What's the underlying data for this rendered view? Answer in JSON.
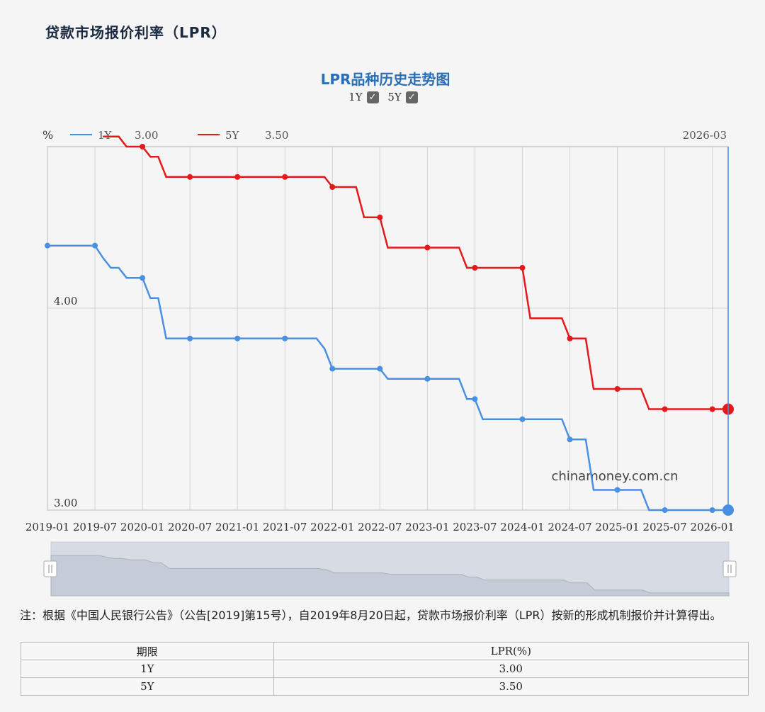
{
  "page_title": "贷款市场报价利率（LPR）",
  "chart_title": "LPR品种历史走势图",
  "toggles": [
    {
      "label": "1Y",
      "checked": true
    },
    {
      "label": "5Y",
      "checked": true
    }
  ],
  "legend": {
    "unit": "%",
    "items": [
      {
        "name": "1Y",
        "value": "3.00",
        "color": "#4a90e2"
      },
      {
        "name": "5Y",
        "value": "3.50",
        "color": "#e41a1a"
      }
    ],
    "cursor_date": "2026-03"
  },
  "watermark": "chinamoney.com.cn",
  "colors": {
    "line_1y": "#4a90e2",
    "line_5y": "#e41a1a",
    "cursor": "#4a90e2"
  },
  "chart_data": {
    "type": "line",
    "xlabel": "",
    "ylabel": "%",
    "ylim": [
      3.0,
      4.8
    ],
    "y_ticks": [
      "4.00",
      "3.00"
    ],
    "x_ticks": [
      "2019-01",
      "2019-07",
      "2020-01",
      "2020-07",
      "2021-01",
      "2021-07",
      "2022-01",
      "2022-07",
      "2023-01",
      "2023-07",
      "2024-01",
      "2024-07",
      "2025-01",
      "2025-07",
      "2026-01"
    ],
    "cursor_x": "2026-03",
    "series": [
      {
        "name": "1Y",
        "color": "#4a90e2",
        "points": [
          [
            "2019-01",
            4.31
          ],
          [
            "2019-07",
            4.31
          ],
          [
            "2019-08",
            4.25
          ],
          [
            "2019-09",
            4.2
          ],
          [
            "2019-10",
            4.2
          ],
          [
            "2019-11",
            4.15
          ],
          [
            "2020-01",
            4.15
          ],
          [
            "2020-02",
            4.05
          ],
          [
            "2020-03",
            4.05
          ],
          [
            "2020-04",
            3.85
          ],
          [
            "2020-07",
            3.85
          ],
          [
            "2021-01",
            3.85
          ],
          [
            "2021-07",
            3.85
          ],
          [
            "2021-11",
            3.85
          ],
          [
            "2021-12",
            3.8
          ],
          [
            "2022-01",
            3.7
          ],
          [
            "2022-07",
            3.7
          ],
          [
            "2022-08",
            3.65
          ],
          [
            "2023-01",
            3.65
          ],
          [
            "2023-05",
            3.65
          ],
          [
            "2023-06",
            3.55
          ],
          [
            "2023-07",
            3.55
          ],
          [
            "2023-08",
            3.45
          ],
          [
            "2024-01",
            3.45
          ],
          [
            "2024-06",
            3.45
          ],
          [
            "2024-07",
            3.35
          ],
          [
            "2024-09",
            3.35
          ],
          [
            "2024-10",
            3.1
          ],
          [
            "2025-01",
            3.1
          ],
          [
            "2025-04",
            3.1
          ],
          [
            "2025-05",
            3.0
          ],
          [
            "2025-07",
            3.0
          ],
          [
            "2026-01",
            3.0
          ],
          [
            "2026-03",
            3.0
          ]
        ],
        "markers": [
          "2019-01",
          "2019-07",
          "2020-01",
          "2020-07",
          "2021-01",
          "2021-07",
          "2022-01",
          "2022-07",
          "2023-01",
          "2023-07",
          "2024-01",
          "2024-07",
          "2025-01",
          "2025-07",
          "2026-01",
          "2026-03"
        ]
      },
      {
        "name": "5Y",
        "color": "#e41a1a",
        "points": [
          [
            "2019-08",
            4.85
          ],
          [
            "2019-10",
            4.85
          ],
          [
            "2019-11",
            4.8
          ],
          [
            "2020-01",
            4.8
          ],
          [
            "2020-02",
            4.75
          ],
          [
            "2020-03",
            4.75
          ],
          [
            "2020-04",
            4.65
          ],
          [
            "2020-07",
            4.65
          ],
          [
            "2021-01",
            4.65
          ],
          [
            "2021-07",
            4.65
          ],
          [
            "2021-12",
            4.65
          ],
          [
            "2022-01",
            4.6
          ],
          [
            "2022-04",
            4.6
          ],
          [
            "2022-05",
            4.45
          ],
          [
            "2022-07",
            4.45
          ],
          [
            "2022-08",
            4.3
          ],
          [
            "2023-01",
            4.3
          ],
          [
            "2023-05",
            4.3
          ],
          [
            "2023-06",
            4.2
          ],
          [
            "2023-07",
            4.2
          ],
          [
            "2024-01",
            4.2
          ],
          [
            "2024-02",
            3.95
          ],
          [
            "2024-06",
            3.95
          ],
          [
            "2024-07",
            3.85
          ],
          [
            "2024-09",
            3.85
          ],
          [
            "2024-10",
            3.6
          ],
          [
            "2025-01",
            3.6
          ],
          [
            "2025-04",
            3.6
          ],
          [
            "2025-05",
            3.5
          ],
          [
            "2025-07",
            3.5
          ],
          [
            "2026-01",
            3.5
          ],
          [
            "2026-03",
            3.5
          ]
        ],
        "markers": [
          "2020-01",
          "2020-07",
          "2021-01",
          "2021-07",
          "2022-01",
          "2022-07",
          "2023-01",
          "2023-07",
          "2024-01",
          "2024-07",
          "2025-01",
          "2025-07",
          "2026-01",
          "2026-03"
        ]
      }
    ]
  },
  "note": "注：根据《中国人民银行公告》（公告[2019]第15号），自2019年8月20日起，贷款市场报价利率（LPR）按新的形成机制报价并计算得出。",
  "table": {
    "headers": [
      "期限",
      "LPR(%)"
    ],
    "rows": [
      [
        "1Y",
        "3.00"
      ],
      [
        "5Y",
        "3.50"
      ]
    ]
  }
}
